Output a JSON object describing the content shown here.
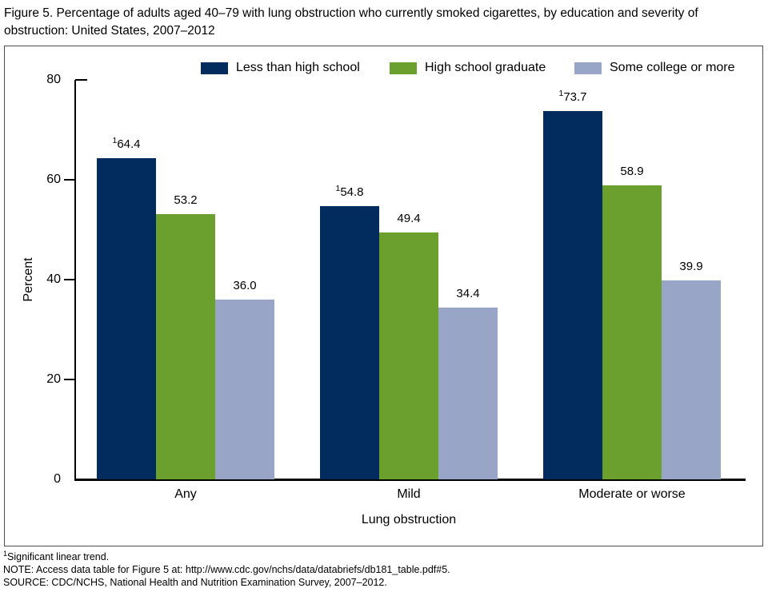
{
  "chart_data": {
    "type": "bar",
    "title": "Figure 5. Percentage of adults aged 40–79 with lung obstruction who currently smoked cigarettes, by education and severity of obstruction: United States, 2007–2012",
    "categories": [
      "Any",
      "Mild",
      "Moderate or worse"
    ],
    "series": [
      {
        "name": "Less than high school",
        "color": "#022c5e",
        "values": [
          64.4,
          54.8,
          73.7
        ],
        "value_labels": [
          "64.4",
          "54.8",
          "73.7"
        ],
        "footnote_sup": "1"
      },
      {
        "name": "High school graduate",
        "color": "#6ba02f",
        "values": [
          53.2,
          49.4,
          58.9
        ],
        "value_labels": [
          "53.2",
          "49.4",
          "58.9"
        ]
      },
      {
        "name": "Some college or more",
        "color": "#98a5c6",
        "values": [
          36.0,
          34.4,
          39.9
        ],
        "value_labels": [
          "36.0",
          "34.4",
          "39.9"
        ]
      }
    ],
    "xlabel": "Lung obstruction",
    "ylabel": "Percent",
    "ylim": [
      0,
      80
    ],
    "yticks": [
      0,
      20,
      40,
      60,
      80
    ],
    "legend_position": "top-inside",
    "grid": false
  },
  "footnotes": [
    {
      "sup": "1",
      "text": "Significant linear trend."
    },
    {
      "text": "NOTE: Access data table for Figure 5 at: http://www.cdc.gov/nchs/data/databriefs/db181_table.pdf#5."
    },
    {
      "text": "SOURCE: CDC/NCHS, National Health and Nutrition Examination Survey, 2007–2012."
    }
  ]
}
